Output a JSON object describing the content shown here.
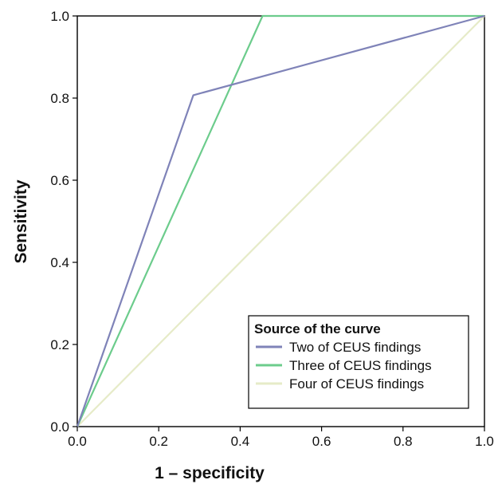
{
  "chart_data": {
    "type": "line",
    "title": "",
    "xlabel": "1 – specificity",
    "ylabel": "Sensitivity",
    "xlim": [
      0.0,
      1.0
    ],
    "ylim": [
      0.0,
      1.0
    ],
    "x_ticks": [
      "0.0",
      "0.2",
      "0.4",
      "0.6",
      "0.8",
      "1.0"
    ],
    "y_ticks": [
      "0.0",
      "0.2",
      "0.4",
      "0.6",
      "0.8",
      "1.0"
    ],
    "grid": false,
    "legend": {
      "title": "Source of the curve",
      "position": "bottom-right"
    },
    "series": [
      {
        "name": "Two of CEUS findings",
        "color": "#7f83b8",
        "x": [
          0.0,
          0.285,
          1.0
        ],
        "y": [
          0.0,
          0.807,
          1.0
        ]
      },
      {
        "name": "Three of CEUS findings",
        "color": "#6ccc8c",
        "x": [
          0.0,
          0.455,
          1.0
        ],
        "y": [
          0.0,
          1.0,
          1.0
        ]
      },
      {
        "name": "Four of CEUS findings",
        "color": "#e6ebc8",
        "x": [
          0.0,
          1.0
        ],
        "y": [
          0.0,
          1.0
        ]
      }
    ]
  }
}
